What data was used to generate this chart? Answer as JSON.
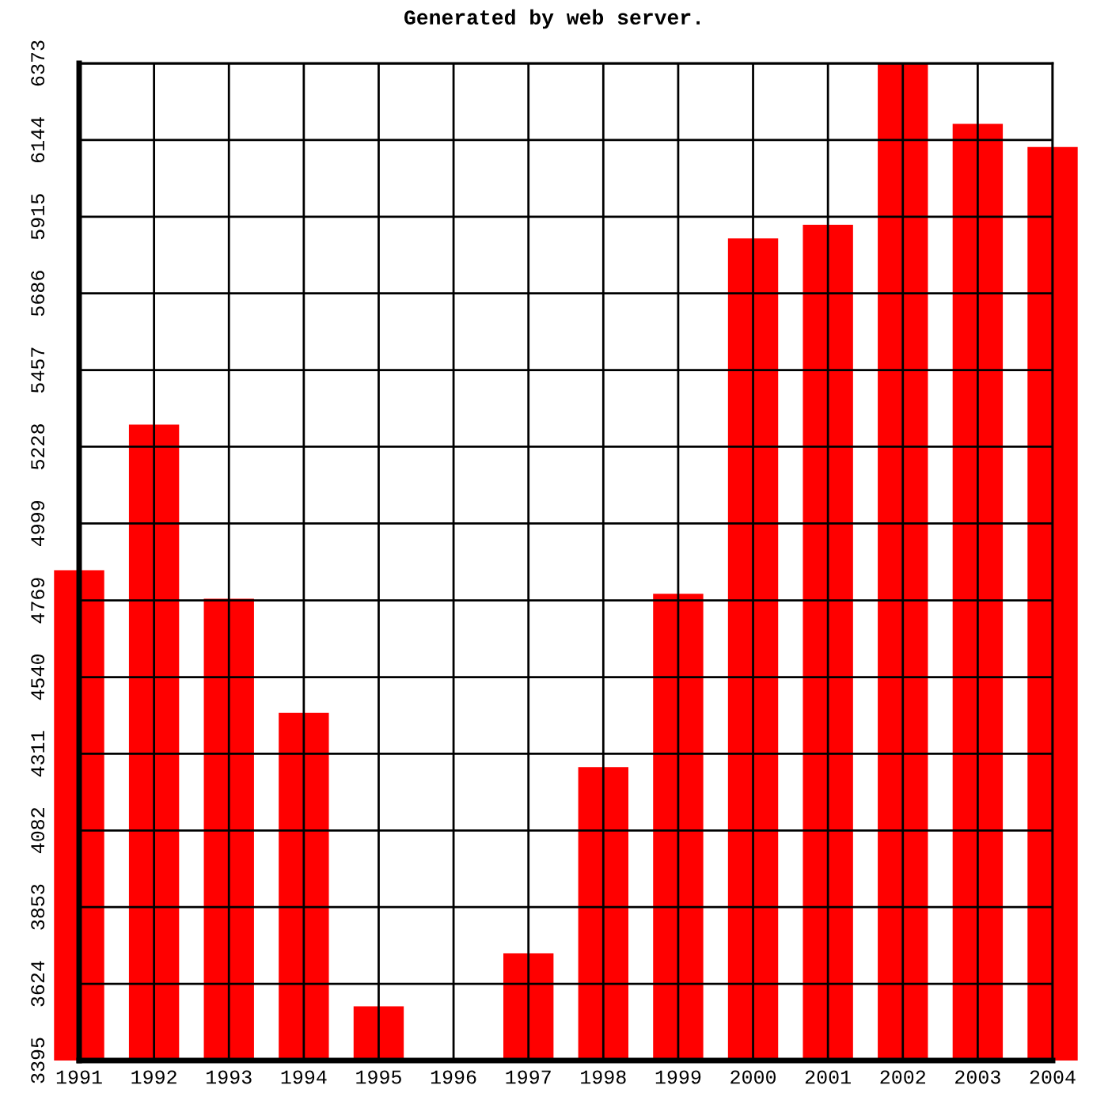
{
  "chart_data": {
    "type": "bar",
    "title": "Generated by web server.",
    "categories": [
      "1991",
      "1992",
      "1993",
      "1994",
      "1995",
      "1996",
      "1997",
      "1998",
      "1999",
      "2000",
      "2001",
      "2002",
      "2003",
      "2004"
    ],
    "values": [
      4859,
      5294,
      4774,
      4433,
      3557,
      3395,
      3715,
      4271,
      4789,
      5850,
      5891,
      6373,
      6192,
      6123
    ],
    "color": "#ff0000",
    "ylim": [
      3395,
      6373
    ],
    "yticks": [
      3395,
      3624,
      3853,
      4082,
      4311,
      4540,
      4769,
      4999,
      5228,
      5457,
      5686,
      5915,
      6144,
      6373
    ],
    "grid": true
  }
}
